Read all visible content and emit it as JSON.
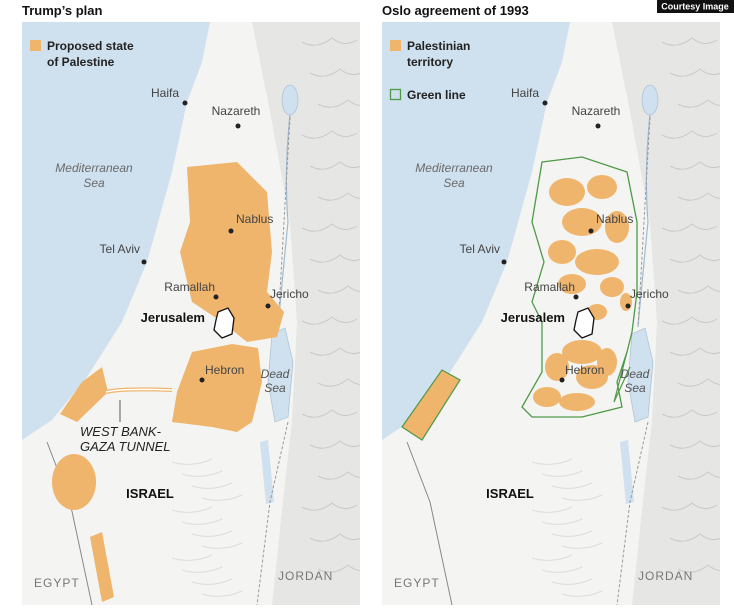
{
  "badge": "Courtesy Image",
  "panels": [
    {
      "title": "Trump’s plan",
      "legend": [
        {
          "kind": "fill",
          "lines": [
            "Proposed state",
            "of Palestine"
          ]
        }
      ],
      "cities": [
        "Haifa",
        "Nazareth",
        "Tel Aviv",
        "Nablus",
        "Ramallah",
        "Jericho",
        "Hebron"
      ],
      "jerusalem": "Jerusalem",
      "sea": [
        "Mediterranean",
        "Sea"
      ],
      "dead_sea": [
        "Dead",
        "Sea"
      ],
      "countries": [
        "ISRAEL",
        "EGYPT",
        "JORDAN"
      ],
      "tunnel": [
        "WEST BANK-",
        "GAZA TUNNEL"
      ]
    },
    {
      "title": "Oslo agreement of 1993",
      "legend": [
        {
          "kind": "fill",
          "lines": [
            "Palestinian",
            "territory"
          ]
        },
        {
          "kind": "outline",
          "lines": [
            "Green line"
          ]
        }
      ],
      "cities": [
        "Haifa",
        "Nazareth",
        "Tel Aviv",
        "Nablus",
        "Ramallah",
        "Jericho",
        "Hebron"
      ],
      "jerusalem": "Jerusalem",
      "sea": [
        "Mediterranean",
        "Sea"
      ],
      "dead_sea": [
        "Dead",
        "Sea"
      ],
      "countries": [
        "ISRAEL",
        "EGYPT",
        "JORDAN"
      ]
    }
  ]
}
